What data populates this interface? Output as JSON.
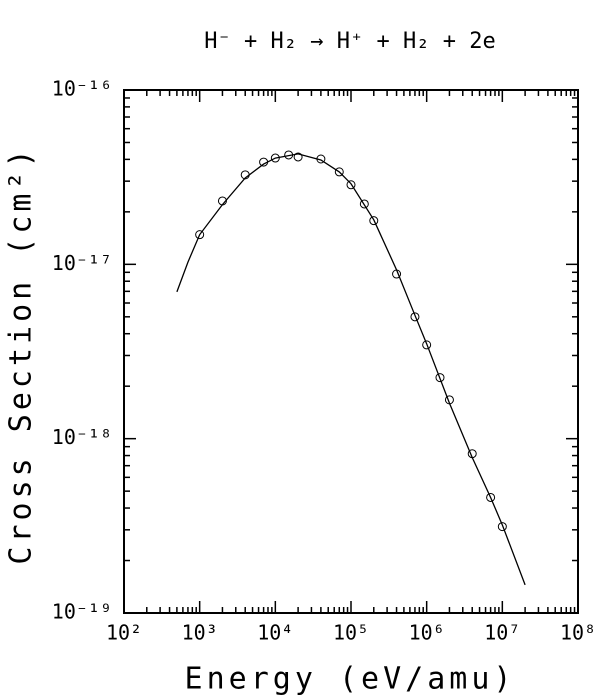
{
  "chart_data": {
    "type": "line",
    "title": "H⁻ + H₂ → H⁺ + H₂ + 2e",
    "x_label": "Energy (eV/amu)",
    "y_label": "Cross Section (cm²)",
    "xlog": true,
    "ylog": true,
    "xlim": [
      100,
      100000000
    ],
    "ylim": [
      1e-19,
      1e-16
    ],
    "xticks": [
      {
        "value": 100,
        "label": "10²"
      },
      {
        "value": 1000,
        "label": "10³"
      },
      {
        "value": 10000,
        "label": "10⁴"
      },
      {
        "value": 100000,
        "label": "10⁵"
      },
      {
        "value": 1000000,
        "label": "10⁶"
      },
      {
        "value": 10000000,
        "label": "10⁷"
      },
      {
        "value": 100000000,
        "label": "10⁸"
      }
    ],
    "yticks": [
      {
        "value": 1e-19,
        "label": "10⁻¹⁹"
      },
      {
        "value": 1e-18,
        "label": "10⁻¹⁸"
      },
      {
        "value": 1e-17,
        "label": "10⁻¹⁷"
      },
      {
        "value": 1e-16,
        "label": "10⁻¹⁶"
      }
    ],
    "series": [
      {
        "style": "markers",
        "color": "#000000",
        "x": [
          1000,
          2000,
          4000,
          7000,
          10000,
          15000,
          20000,
          40000,
          70000,
          100000,
          150000,
          200000,
          400000,
          700000,
          1000000,
          1500000,
          2000000,
          4000000,
          7000000,
          10000000
        ],
        "values": [
          1.48e-17,
          2.31e-17,
          3.26e-17,
          3.86e-17,
          4.07e-17,
          4.24e-17,
          4.13e-17,
          4.02e-17,
          3.39e-17,
          2.86e-17,
          2.22e-17,
          1.78e-17,
          8.8e-18,
          5e-18,
          3.45e-18,
          2.24e-18,
          1.67e-18,
          8.2e-19,
          4.6e-19,
          3.13e-19
        ]
      },
      {
        "style": "line",
        "color": "#000000",
        "x": [
          500,
          700,
          1000,
          2000,
          4000,
          7000,
          10000,
          20000,
          40000,
          70000,
          100000,
          200000,
          400000,
          700000,
          1000000,
          2000000,
          4000000,
          7000000,
          10000000,
          20000000
        ],
        "values": [
          6.95e-18,
          1.03e-17,
          1.48e-17,
          2.2e-17,
          3.13e-17,
          3.76e-17,
          4.07e-17,
          4.3e-17,
          3.97e-17,
          3.39e-17,
          2.9e-17,
          1.8e-17,
          9.3e-18,
          5.1e-18,
          3.5e-18,
          1.6e-18,
          7.8e-19,
          4.6e-19,
          3.2e-19,
          1.45e-19
        ]
      }
    ]
  }
}
